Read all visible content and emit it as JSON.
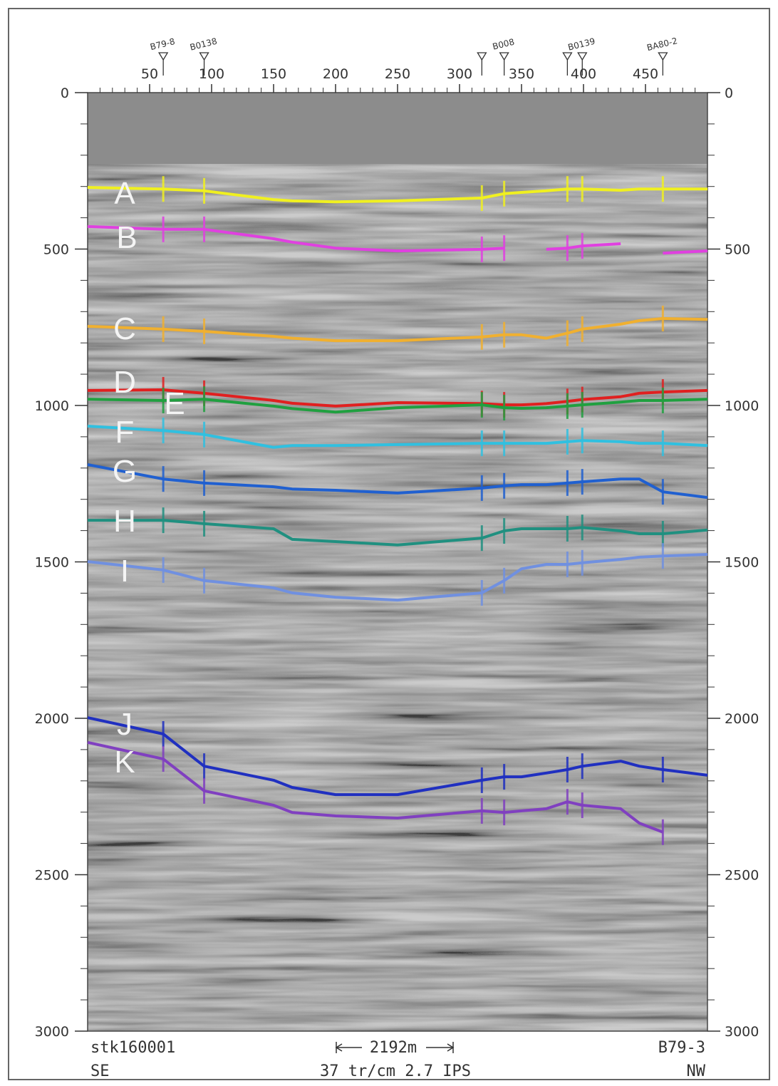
{
  "chart_data": {
    "type": "line",
    "y_inverted": true,
    "xlim": [
      0,
      500
    ],
    "xticks": [
      50,
      100,
      150,
      200,
      250,
      300,
      350,
      400,
      450
    ],
    "xticks_minor": [
      10,
      20,
      30,
      40,
      60,
      70,
      80,
      90,
      110,
      120,
      130,
      140,
      160,
      170,
      180,
      190,
      210,
      220,
      230,
      240,
      260,
      270,
      280,
      290,
      310,
      320,
      330,
      340,
      360,
      370,
      380,
      390,
      410,
      420,
      430,
      440,
      460,
      470,
      480,
      490
    ],
    "ylim": [
      0,
      3000
    ],
    "yticks": [
      0,
      500,
      1000,
      1500,
      2000,
      2500,
      3000
    ],
    "yticks_minor": [
      100,
      200,
      300,
      400,
      600,
      700,
      800,
      900,
      1100,
      1200,
      1300,
      1400,
      1600,
      1700,
      1800,
      1900,
      2100,
      2200,
      2300,
      2400,
      2600,
      2700,
      2800,
      2900
    ],
    "wells": [
      {
        "x": 61,
        "label": "B79-8"
      },
      {
        "x": 94,
        "label": "B0138"
      },
      {
        "x": 318,
        "label": null
      },
      {
        "x": 336,
        "label": "B008"
      },
      {
        "x": 387,
        "label": null
      },
      {
        "x": 399,
        "label": "B0139"
      },
      {
        "x": 464,
        "label": "BA80-2"
      }
    ],
    "x": [
      0,
      61,
      94,
      150,
      165,
      200,
      250,
      318,
      336,
      350,
      370,
      387,
      399,
      430,
      445,
      464,
      500
    ],
    "series": [
      {
        "name": "A",
        "color": "#f0f020",
        "values": [
          303,
          308,
          314,
          342,
          346,
          349,
          346,
          337,
          323,
          319,
          314,
          308,
          308,
          312,
          308,
          308,
          308
        ]
      },
      {
        "name": "B",
        "color": "#e040e0",
        "values": [
          428,
          437,
          437,
          467,
          478,
          497,
          506,
          501,
          497,
          null,
          501,
          497,
          490,
          483,
          null,
          513,
          506
        ]
      },
      {
        "name": "C",
        "color": "#f0b030",
        "values": [
          747,
          756,
          763,
          779,
          785,
          793,
          793,
          781,
          774,
          774,
          785,
          769,
          756,
          740,
          729,
          722,
          725
        ]
      },
      {
        "name": "D",
        "color": "#e02020",
        "values": [
          952,
          950,
          961,
          984,
          993,
          1002,
          991,
          994,
          998,
          998,
          994,
          987,
          981,
          972,
          961,
          957,
          952
        ]
      },
      {
        "name": "E",
        "color": "#20a040",
        "values": [
          980,
          984,
          980,
          1002,
          1010,
          1021,
          1007,
          998,
          1007,
          1009,
          1007,
          1002,
          998,
          989,
          984,
          984,
          980
        ]
      },
      {
        "name": "F",
        "color": "#30c0e0",
        "values": [
          1066,
          1080,
          1093,
          1134,
          1128,
          1128,
          1125,
          1121,
          1121,
          1121,
          1121,
          1116,
          1112,
          1116,
          1121,
          1121,
          1128
        ]
      },
      {
        "name": "G",
        "color": "#2060d0",
        "values": [
          1189,
          1235,
          1248,
          1260,
          1267,
          1271,
          1280,
          1264,
          1257,
          1253,
          1253,
          1248,
          1244,
          1235,
          1235,
          1276,
          1294
        ]
      },
      {
        "name": "H",
        "color": "#209080",
        "values": [
          1367,
          1367,
          1378,
          1394,
          1428,
          1435,
          1446,
          1424,
          1401,
          1394,
          1394,
          1394,
          1390,
          1401,
          1410,
          1410,
          1398
        ]
      },
      {
        "name": "I",
        "color": "#7090e0",
        "values": [
          1499,
          1526,
          1560,
          1583,
          1599,
          1613,
          1622,
          1599,
          1560,
          1522,
          1508,
          1508,
          1503,
          1492,
          1485,
          1481,
          1476
        ]
      },
      {
        "name": "J",
        "color": "#2030c0",
        "values": [
          1998,
          2050,
          2153,
          2198,
          2221,
          2244,
          2244,
          2198,
          2187,
          2187,
          2175,
          2164,
          2153,
          2137,
          2153,
          2164,
          2182
        ]
      },
      {
        "name": "K",
        "color": "#8040c0",
        "values": [
          2077,
          2130,
          2232,
          2278,
          2301,
          2312,
          2319,
          2296,
          2301,
          2296,
          2289,
          2267,
          2278,
          2289,
          2335,
          2364,
          null
        ]
      }
    ],
    "annotations": {
      "line_id": "stk160001",
      "left_direction": "SE",
      "scale_bar": "2192m",
      "acquisition": "37 tr/cm 2.7 IPS",
      "line_end": "B79-3",
      "right_direction": "NW"
    }
  }
}
